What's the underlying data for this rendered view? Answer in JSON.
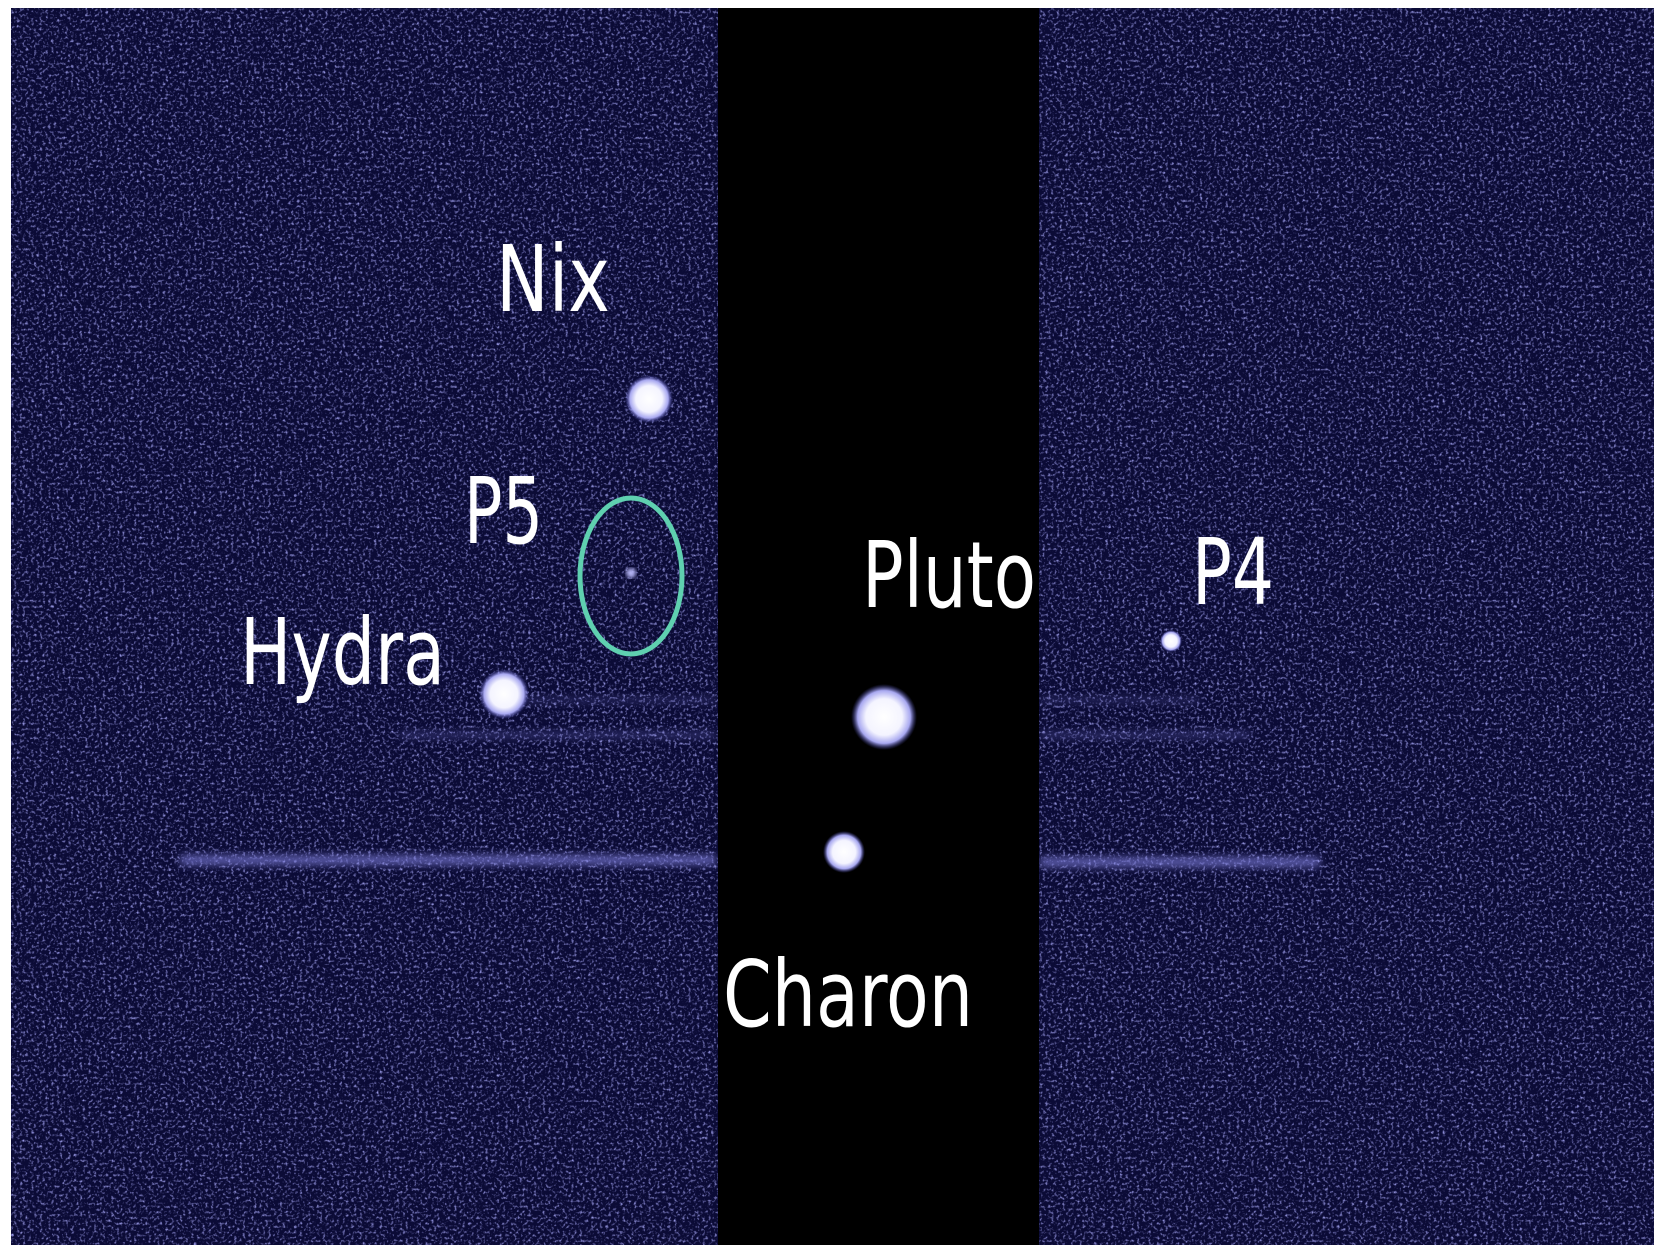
{
  "labels": {
    "nix": "Nix",
    "p5": "P5",
    "hydra": "Hydra",
    "pluto": "Pluto",
    "p4": "P4",
    "charon": "Charon"
  }
}
